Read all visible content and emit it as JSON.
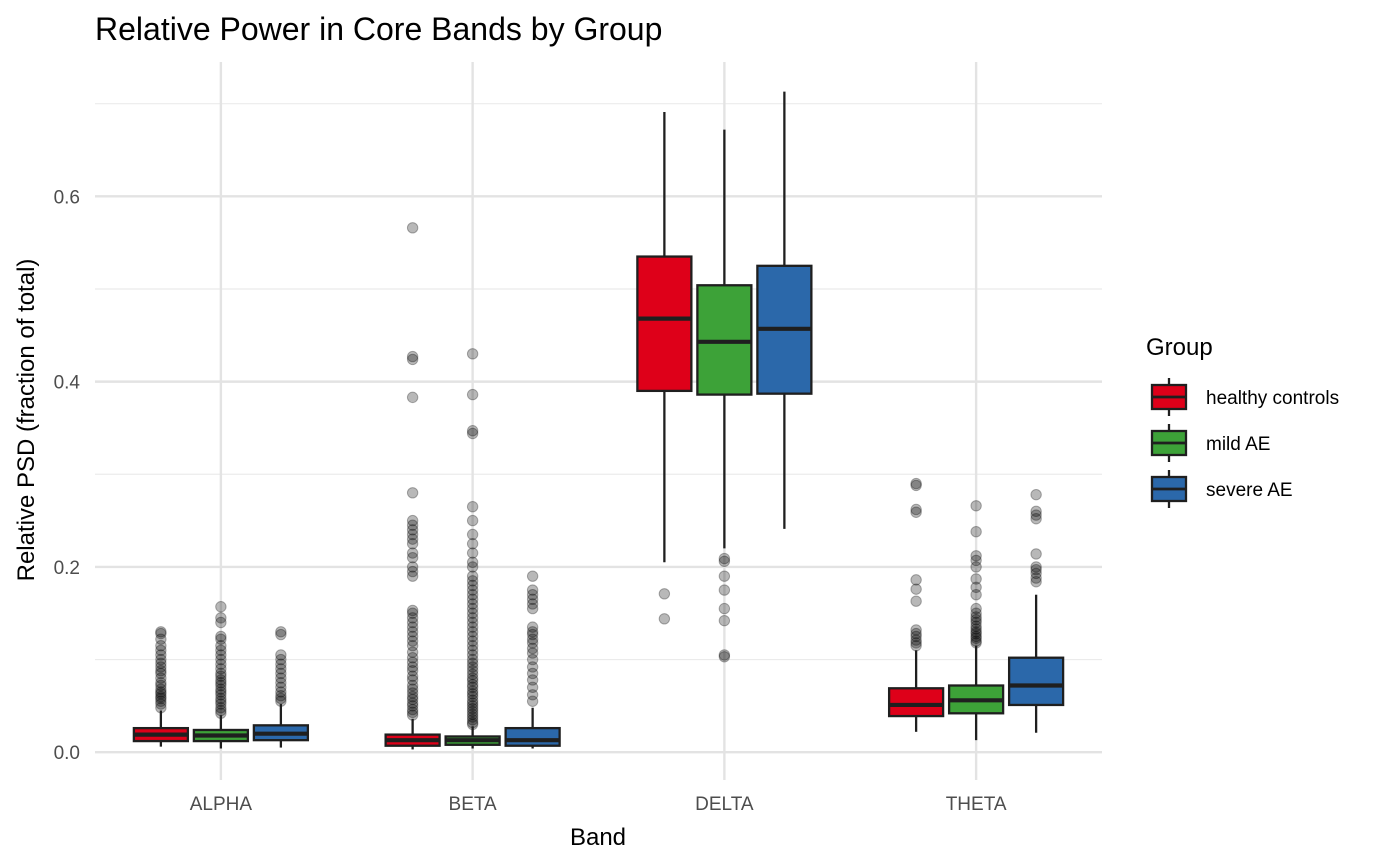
{
  "chart_data": {
    "type": "box",
    "title": "Relative Power in Core Bands by Group",
    "xlabel": "Band",
    "ylabel": "Relative PSD (fraction of total)",
    "ylim": [
      -0.03,
      0.745
    ],
    "yticks": [
      0.0,
      0.2,
      0.4,
      0.6
    ],
    "yticklabels": [
      "0.0",
      "0.2",
      "0.4",
      "0.6"
    ],
    "grid": true,
    "legend_position": "right",
    "legend_title": "Group",
    "categories": [
      "ALPHA",
      "BETA",
      "DELTA",
      "THETA"
    ],
    "series": [
      {
        "name": "healthy controls",
        "color": "#E41A1C",
        "fill": "#DE0019",
        "boxes": [
          {
            "whisker_low": 0.006,
            "q1": 0.012,
            "median": 0.019,
            "q3": 0.026,
            "whisker_high": 0.045,
            "outliers": [
              0.048,
              0.052,
              0.055,
              0.058,
              0.06,
              0.063,
              0.065,
              0.068,
              0.072,
              0.075,
              0.08,
              0.085,
              0.088,
              0.092,
              0.096,
              0.1,
              0.105,
              0.11,
              0.115,
              0.122,
              0.128,
              0.13
            ]
          },
          {
            "whisker_low": 0.003,
            "q1": 0.007,
            "median": 0.013,
            "q3": 0.019,
            "whisker_high": 0.036,
            "outliers": [
              0.04,
              0.043,
              0.046,
              0.05,
              0.053,
              0.057,
              0.06,
              0.064,
              0.068,
              0.072,
              0.078,
              0.082,
              0.088,
              0.092,
              0.097,
              0.102,
              0.108,
              0.115,
              0.12,
              0.125,
              0.13,
              0.135,
              0.14,
              0.145,
              0.15,
              0.153,
              0.19,
              0.195,
              0.2,
              0.21,
              0.215,
              0.225,
              0.23,
              0.235,
              0.24,
              0.245,
              0.25,
              0.28,
              0.383,
              0.424,
              0.427,
              0.566
            ]
          },
          {
            "whisker_low": 0.205,
            "q1": 0.39,
            "median": 0.468,
            "q3": 0.535,
            "whisker_high": 0.691,
            "outliers": [
              0.144,
              0.171
            ]
          },
          {
            "whisker_low": 0.022,
            "q1": 0.039,
            "median": 0.051,
            "q3": 0.069,
            "whisker_high": 0.11,
            "outliers": [
              0.115,
              0.118,
              0.121,
              0.125,
              0.128,
              0.132,
              0.163,
              0.176,
              0.186,
              0.259,
              0.262,
              0.288,
              0.29
            ]
          }
        ]
      },
      {
        "name": "mild AE",
        "color": "#4DAF4A",
        "fill": "#3DA238",
        "boxes": [
          {
            "whisker_low": 0.004,
            "q1": 0.012,
            "median": 0.018,
            "q3": 0.024,
            "whisker_high": 0.04,
            "outliers": [
              0.042,
              0.045,
              0.048,
              0.052,
              0.055,
              0.058,
              0.062,
              0.065,
              0.068,
              0.072,
              0.075,
              0.078,
              0.082,
              0.085,
              0.09,
              0.095,
              0.1,
              0.105,
              0.11,
              0.115,
              0.122,
              0.125,
              0.14,
              0.145,
              0.157
            ]
          },
          {
            "whisker_low": 0.004,
            "q1": 0.008,
            "median": 0.013,
            "q3": 0.017,
            "whisker_high": 0.028,
            "outliers": [
              0.03,
              0.032,
              0.035,
              0.038,
              0.041,
              0.044,
              0.047,
              0.05,
              0.053,
              0.056,
              0.06,
              0.063,
              0.066,
              0.07,
              0.073,
              0.077,
              0.08,
              0.084,
              0.088,
              0.092,
              0.096,
              0.1,
              0.105,
              0.11,
              0.115,
              0.12,
              0.125,
              0.13,
              0.135,
              0.14,
              0.145,
              0.15,
              0.155,
              0.16,
              0.165,
              0.17,
              0.175,
              0.18,
              0.185,
              0.19,
              0.2,
              0.205,
              0.215,
              0.225,
              0.235,
              0.25,
              0.265,
              0.344,
              0.347,
              0.386,
              0.43
            ]
          },
          {
            "whisker_low": 0.22,
            "q1": 0.386,
            "median": 0.443,
            "q3": 0.504,
            "whisker_high": 0.672,
            "outliers": [
              0.103,
              0.105,
              0.142,
              0.155,
              0.175,
              0.19,
              0.206,
              0.209
            ]
          },
          {
            "whisker_low": 0.013,
            "q1": 0.042,
            "median": 0.056,
            "q3": 0.072,
            "whisker_high": 0.115,
            "outliers": [
              0.118,
              0.12,
              0.123,
              0.125,
              0.128,
              0.13,
              0.133,
              0.136,
              0.14,
              0.143,
              0.146,
              0.15,
              0.155,
              0.17,
              0.178,
              0.187,
              0.2,
              0.207,
              0.212,
              0.238,
              0.266
            ]
          }
        ]
      },
      {
        "name": "severe AE",
        "color": "#377EB8",
        "fill": "#2B68AA",
        "boxes": [
          {
            "whisker_low": 0.005,
            "q1": 0.013,
            "median": 0.02,
            "q3": 0.029,
            "whisker_high": 0.052,
            "outliers": [
              0.055,
              0.058,
              0.061,
              0.065,
              0.07,
              0.075,
              0.08,
              0.085,
              0.09,
              0.095,
              0.1,
              0.105,
              0.127,
              0.13
            ]
          },
          {
            "whisker_low": 0.004,
            "q1": 0.007,
            "median": 0.013,
            "q3": 0.026,
            "whisker_high": 0.048,
            "outliers": [
              0.055,
              0.062,
              0.07,
              0.078,
              0.085,
              0.092,
              0.1,
              0.107,
              0.112,
              0.118,
              0.122,
              0.127,
              0.13,
              0.135,
              0.155,
              0.16,
              0.165,
              0.17,
              0.175,
              0.19
            ]
          },
          {
            "whisker_low": 0.241,
            "q1": 0.387,
            "median": 0.457,
            "q3": 0.525,
            "whisker_high": 0.713,
            "outliers": []
          },
          {
            "whisker_low": 0.021,
            "q1": 0.051,
            "median": 0.072,
            "q3": 0.102,
            "whisker_high": 0.17,
            "outliers": [
              0.184,
              0.188,
              0.193,
              0.197,
              0.2,
              0.214,
              0.252,
              0.256,
              0.26,
              0.278
            ]
          }
        ]
      }
    ]
  }
}
